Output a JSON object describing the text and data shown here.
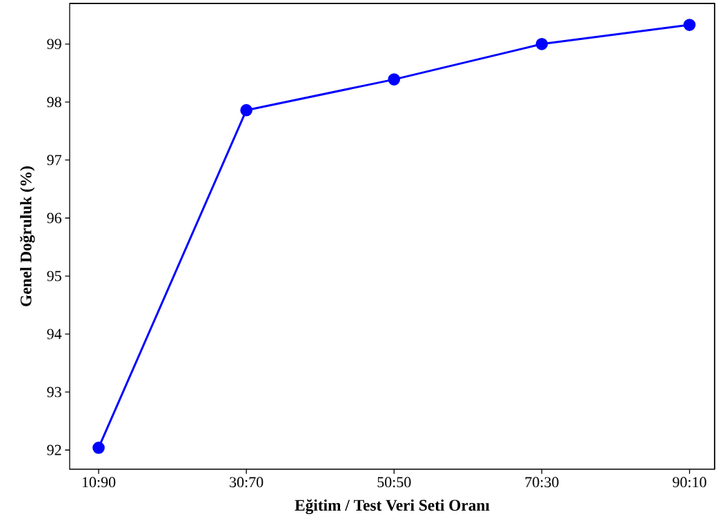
{
  "chart_data": {
    "type": "line",
    "xlabel": "Eğitim / Test Veri Seti Oranı",
    "ylabel": "Genel Doğruluk (%)",
    "categories": [
      "10:90",
      "30:70",
      "50:50",
      "70:30",
      "90:10"
    ],
    "series": [
      {
        "color": "#0000ff",
        "values": [
          92.04,
          97.86,
          98.39,
          99.0,
          99.33
        ]
      }
    ],
    "ylim": [
      91.67,
      99.7
    ],
    "yticks": [
      92,
      93,
      94,
      95,
      96,
      97,
      98,
      99
    ],
    "marker": "circle",
    "line_style": "solid"
  }
}
